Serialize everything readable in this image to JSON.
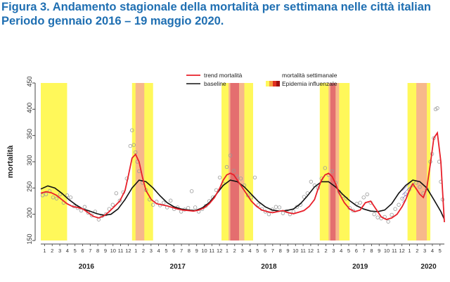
{
  "figure": {
    "title_line1": "Figura 3. Andamento stagionale della mortalità per settimana nelle città italian",
    "title_line2": "Periodo gennaio 2016 – 19 maggio 2020."
  },
  "colors": {
    "title": "#1f6fb2",
    "trend": "#e8202a",
    "baseline": "#111111",
    "points": "#9a9a9a",
    "flu_season": "#fff85a",
    "flu_mid": "#f6b090",
    "flu_peak": "#e0606a",
    "excess_hatch": "#6a5acd"
  },
  "chart_data": {
    "type": "line",
    "ylabel": "mortalità",
    "ylim": [
      150,
      450
    ],
    "yticks": [
      150,
      200,
      250,
      300,
      350,
      400,
      450
    ],
    "xrange_weeks": [
      0,
      230
    ],
    "years": [
      {
        "label": "2016",
        "start_week": 0,
        "months": 12
      },
      {
        "label": "2017",
        "start_week": 52,
        "months": 12
      },
      {
        "label": "2018",
        "start_week": 104,
        "months": 12
      },
      {
        "label": "2019",
        "start_week": 156,
        "months": 12
      },
      {
        "label": "2020",
        "start_week": 208,
        "months": 6
      }
    ],
    "legend": {
      "trend": "trend mortalità",
      "baseline": "baseline",
      "points": "mortalità settimanale",
      "epidemic": "Epidemia influenzale"
    },
    "flu_epidemics": [
      {
        "start": 0,
        "end": 15,
        "mid": null,
        "peak": null
      },
      {
        "start": 52,
        "end": 64,
        "mid": [
          54,
          59
        ],
        "peak": null
      },
      {
        "start": 103,
        "end": 121,
        "mid": [
          107,
          116
        ],
        "peak": [
          108,
          113
        ]
      },
      {
        "start": 159,
        "end": 176,
        "mid": [
          164,
          170
        ],
        "peak": [
          165,
          168
        ]
      },
      {
        "start": 209,
        "end": 222,
        "mid": [
          214,
          220
        ],
        "peak": null
      }
    ],
    "series": [
      {
        "name": "trend mortalità",
        "x": [
          0,
          3,
          6,
          9,
          12,
          15,
          18,
          21,
          24,
          27,
          30,
          33,
          36,
          39,
          42,
          45,
          48,
          50,
          52,
          54,
          56,
          58,
          60,
          63,
          66,
          69,
          72,
          75,
          78,
          81,
          84,
          87,
          90,
          93,
          96,
          99,
          102,
          104,
          106,
          108,
          110,
          112,
          114,
          117,
          120,
          123,
          126,
          129,
          132,
          135,
          138,
          141,
          144,
          147,
          150,
          153,
          156,
          158,
          160,
          162,
          164,
          166,
          168,
          170,
          173,
          176,
          179,
          182,
          185,
          188,
          191,
          194,
          197,
          200,
          203,
          206,
          208,
          210,
          212,
          214,
          216,
          218,
          220,
          222,
          224,
          226,
          228,
          230
        ],
        "values": [
          240,
          243,
          241,
          236,
          228,
          220,
          215,
          213,
          210,
          203,
          196,
          193,
          197,
          205,
          215,
          225,
          245,
          275,
          307,
          314,
          300,
          270,
          245,
          228,
          220,
          218,
          216,
          213,
          210,
          208,
          207,
          206,
          208,
          212,
          220,
          232,
          250,
          265,
          275,
          278,
          275,
          265,
          255,
          240,
          225,
          215,
          208,
          205,
          203,
          205,
          207,
          203,
          201,
          204,
          207,
          215,
          228,
          248,
          265,
          275,
          278,
          272,
          258,
          240,
          222,
          210,
          205,
          208,
          222,
          225,
          210,
          195,
          190,
          193,
          200,
          215,
          228,
          245,
          258,
          248,
          238,
          232,
          250,
          295,
          345,
          355,
          300,
          185
        ]
      },
      {
        "name": "baseline",
        "x": [
          0,
          4,
          8,
          12,
          16,
          20,
          24,
          28,
          32,
          36,
          40,
          44,
          48,
          52,
          56,
          60,
          64,
          68,
          72,
          76,
          80,
          84,
          88,
          92,
          96,
          100,
          104,
          108,
          112,
          116,
          120,
          124,
          128,
          132,
          136,
          140,
          144,
          148,
          152,
          156,
          160,
          164,
          168,
          172,
          176,
          180,
          184,
          188,
          192,
          196,
          200,
          204,
          208,
          212,
          216,
          220,
          224,
          228,
          230
        ],
        "values": [
          248,
          254,
          250,
          240,
          228,
          218,
          210,
          206,
          201,
          198,
          200,
          210,
          228,
          250,
          265,
          262,
          250,
          235,
          222,
          214,
          210,
          208,
          207,
          212,
          222,
          238,
          255,
          265,
          262,
          252,
          238,
          224,
          214,
          208,
          206,
          207,
          210,
          220,
          235,
          252,
          262,
          262,
          252,
          238,
          226,
          216,
          210,
          206,
          205,
          208,
          220,
          240,
          255,
          265,
          262,
          250,
          228,
          205,
          190
        ]
      },
      {
        "name": "mortalità settimanale",
        "x": [
          1,
          3,
          5,
          7,
          9,
          11,
          13,
          15,
          17,
          19,
          21,
          23,
          25,
          27,
          29,
          31,
          33,
          35,
          37,
          39,
          41,
          43,
          45,
          47,
          49,
          51,
          52,
          53,
          54,
          55,
          56,
          58,
          60,
          62,
          64,
          66,
          68,
          70,
          72,
          74,
          76,
          78,
          80,
          82,
          84,
          86,
          88,
          90,
          92,
          94,
          96,
          98,
          100,
          102,
          104,
          106,
          108,
          110,
          112,
          114,
          116,
          118,
          120,
          122,
          124,
          126,
          128,
          130,
          132,
          134,
          136,
          138,
          140,
          142,
          144,
          146,
          148,
          150,
          152,
          154,
          156,
          158,
          160,
          162,
          164,
          166,
          168,
          170,
          172,
          174,
          176,
          178,
          180,
          182,
          184,
          186,
          188,
          190,
          192,
          194,
          196,
          198,
          200,
          202,
          204,
          206,
          208,
          210,
          212,
          214,
          216,
          218,
          220,
          222,
          223,
          224,
          225,
          226,
          227,
          228,
          229
        ],
        "values": [
          236,
          238,
          244,
          232,
          230,
          238,
          222,
          236,
          232,
          215,
          212,
          207,
          214,
          203,
          198,
          205,
          190,
          197,
          200,
          210,
          218,
          240,
          226,
          242,
          268,
          330,
          360,
          332,
          318,
          300,
          282,
          260,
          246,
          228,
          218,
          224,
          217,
          222,
          213,
          226,
          210,
          213,
          205,
          209,
          212,
          244,
          213,
          205,
          210,
          216,
          225,
          232,
          246,
          270,
          258,
          290,
          312,
          283,
          272,
          268,
          255,
          236,
          232,
          270,
          218,
          210,
          205,
          200,
          209,
          214,
          213,
          202,
          206,
          200,
          205,
          214,
          218,
          233,
          240,
          262,
          255,
          250,
          268,
          288,
          275,
          282,
          260,
          243,
          235,
          230,
          212,
          207,
          220,
          222,
          232,
          238,
          222,
          200,
          194,
          192,
          195,
          186,
          199,
          210,
          218,
          230,
          238,
          247,
          255,
          260,
          252,
          240,
          248,
          300,
          315,
          345,
          400,
          402,
          300,
          262,
          228
        ]
      }
    ]
  }
}
